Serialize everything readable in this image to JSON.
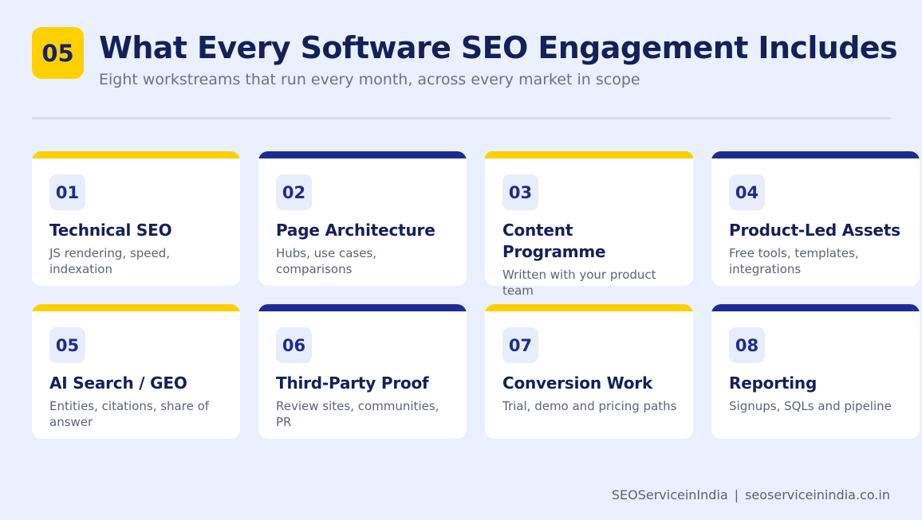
{
  "header": {
    "badge": "05",
    "title": "What Every Software SEO Engagement Includes",
    "subtitle": "Eight workstreams that run every month, across every market in scope"
  },
  "colors": {
    "yellow": "#ffd000",
    "navy": "#1d2c8e",
    "background": "#eaf0fd"
  },
  "cards": [
    {
      "number": "01",
      "title": "Technical SEO",
      "description": "JS rendering, speed, indexation",
      "accent": "yellow"
    },
    {
      "number": "02",
      "title": "Page Architecture",
      "description": "Hubs, use cases, comparisons",
      "accent": "navy"
    },
    {
      "number": "03",
      "title": "Content Programme",
      "description": "Written with your product team",
      "accent": "yellow"
    },
    {
      "number": "04",
      "title": "Product-Led Assets",
      "description": "Free tools, templates, integrations",
      "accent": "navy"
    },
    {
      "number": "05",
      "title": "AI Search / GEO",
      "description": "Entities, citations, share of answer",
      "accent": "yellow"
    },
    {
      "number": "06",
      "title": "Third-Party Proof",
      "description": "Review sites, communities, PR",
      "accent": "navy"
    },
    {
      "number": "07",
      "title": "Conversion Work",
      "description": "Trial, demo and pricing paths",
      "accent": "yellow"
    },
    {
      "number": "08",
      "title": "Reporting",
      "description": "Signups, SQLs and pipeline",
      "accent": "navy"
    }
  ],
  "footer": {
    "brand": "SEOServiceinIndia",
    "separator": "|",
    "url": "seoserviceinindia.co.in"
  }
}
